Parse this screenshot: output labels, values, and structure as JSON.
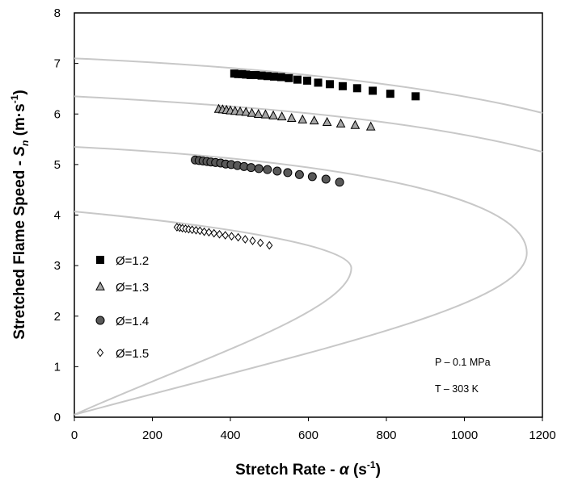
{
  "chart_data": {
    "type": "scatter",
    "xlabel": {
      "prefix": "Stretch Rate - ",
      "symbol": "α",
      "unit_open": " (s",
      "unit_sup": "-1",
      "unit_close": ")"
    },
    "ylabel": {
      "prefix": "Stretched Flame Speed - ",
      "symbol": "S",
      "symbol_sub": "n",
      "unit_open": " (m·s",
      "unit_sup": "-1",
      "unit_close": ")"
    },
    "xlim": [
      0,
      1200
    ],
    "ylim": [
      0,
      8
    ],
    "x_ticks": [
      0,
      200,
      400,
      600,
      800,
      1000,
      1200
    ],
    "y_ticks": [
      0,
      1,
      2,
      3,
      4,
      5,
      6,
      7,
      8
    ],
    "grid": false,
    "legend_position": "left",
    "annotations": [
      "P – 0.1 MPa",
      "T – 303 K"
    ],
    "series": [
      {
        "name": "Ø=1.2",
        "marker": "square",
        "color": "#000000",
        "fit": {
          "unstretched_speed": 7.1,
          "turning_point": [
            1160,
            3.25
          ]
        },
        "x": [
          410,
          420,
          430,
          440,
          452,
          465,
          480,
          495,
          512,
          530,
          550,
          572,
          597,
          625,
          655,
          688,
          725,
          765,
          810,
          875
        ],
        "y": [
          6.8,
          6.79,
          6.79,
          6.78,
          6.77,
          6.77,
          6.76,
          6.75,
          6.74,
          6.73,
          6.71,
          6.68,
          6.66,
          6.62,
          6.59,
          6.55,
          6.51,
          6.46,
          6.4,
          6.35
        ]
      },
      {
        "name": "Ø=1.3",
        "marker": "triangle",
        "color": "#a6a6a6",
        "fit": {
          "unstretched_speed": 6.35
        },
        "x": [
          370,
          380,
          390,
          400,
          412,
          425,
          440,
          455,
          472,
          490,
          510,
          532,
          557,
          585,
          615,
          648,
          683,
          720,
          760
        ],
        "y": [
          6.1,
          6.09,
          6.08,
          6.07,
          6.06,
          6.05,
          6.04,
          6.02,
          6.0,
          5.99,
          5.97,
          5.95,
          5.92,
          5.89,
          5.87,
          5.84,
          5.81,
          5.78,
          5.75
        ]
      },
      {
        "name": "Ø=1.4",
        "marker": "circle",
        "color": "#595959",
        "fit": {
          "unstretched_speed": 5.35
        },
        "x": [
          310,
          320,
          330,
          340,
          350,
          362,
          375,
          388,
          402,
          418,
          435,
          453,
          473,
          495,
          520,
          547,
          577,
          610,
          645,
          680
        ],
        "y": [
          5.09,
          5.08,
          5.07,
          5.06,
          5.05,
          5.04,
          5.03,
          5.01,
          5.0,
          4.98,
          4.96,
          4.94,
          4.92,
          4.9,
          4.87,
          4.84,
          4.8,
          4.76,
          4.71,
          4.65
        ]
      },
      {
        "name": "Ø=1.5",
        "marker": "diamond",
        "color": "#ffffff",
        "fit": {
          "unstretched_speed": 4.07,
          "turning_point": [
            710,
            2.95
          ]
        },
        "x": [
          263,
          270,
          277,
          285,
          293,
          302,
          312,
          322,
          333,
          345,
          358,
          372,
          387,
          403,
          420,
          438,
          457,
          477,
          500
        ],
        "y": [
          3.76,
          3.75,
          3.74,
          3.73,
          3.72,
          3.71,
          3.7,
          3.69,
          3.67,
          3.66,
          3.64,
          3.62,
          3.6,
          3.58,
          3.56,
          3.52,
          3.49,
          3.45,
          3.4
        ]
      }
    ]
  }
}
